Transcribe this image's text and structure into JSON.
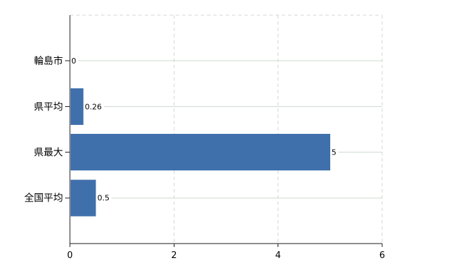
{
  "chart_data": {
    "type": "bar",
    "orientation": "horizontal",
    "title": "",
    "xlabel": "",
    "ylabel": "",
    "categories": [
      "輪島市",
      "県平均",
      "県最大",
      "全国平均"
    ],
    "values": [
      0,
      0.26,
      5,
      0.5
    ],
    "value_labels": [
      "0",
      "0.26",
      "5",
      "0.5"
    ],
    "xlim": [
      0,
      6
    ],
    "xticks": [
      0,
      2,
      4,
      6
    ],
    "xtick_labels": [
      "0",
      "2",
      "4",
      "6"
    ],
    "grid": true,
    "legend": false,
    "colors": {
      "bar": "#4070ac",
      "row_gridline": "#cdd8cd",
      "dashed_gridline": "#d6d6d6",
      "axis": "#1a1a1a",
      "text": "#000000",
      "background": "#ffffff"
    }
  }
}
